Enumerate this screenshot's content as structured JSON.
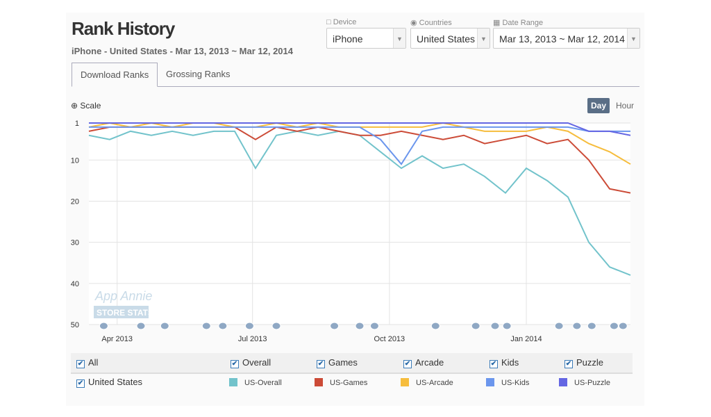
{
  "header": {
    "title": "Rank History",
    "subtitle": "iPhone - United States - Mar 13, 2013 ~ Mar 12, 2014"
  },
  "filters": {
    "device_label": "Device",
    "device": "iPhone",
    "countries_label": "Countries",
    "country": "United States",
    "date_label": "Date Range",
    "date_range": "Mar 13, 2013 ~ Mar 12, 2014"
  },
  "tabs": [
    "Download Ranks",
    "Grossing Ranks"
  ],
  "controls": {
    "scale": "Scale",
    "day": "Day",
    "hour": "Hour"
  },
  "watermark": {
    "line1": "App Annie",
    "line2": "STORE STATS"
  },
  "chart_data": {
    "type": "line",
    "x_unit": "days since Mar 13, 2013",
    "x": [
      0,
      14,
      28,
      42,
      56,
      70,
      84,
      98,
      112,
      126,
      140,
      154,
      168,
      182,
      196,
      210,
      224,
      238,
      252,
      266,
      280,
      294,
      308,
      322,
      336,
      350,
      364
    ],
    "y_ticks": [
      1,
      10,
      20,
      30,
      40,
      50
    ],
    "ylim": [
      1,
      50
    ],
    "y_reversed": true,
    "x_ticks": [
      {
        "label": "Apr 2013",
        "day": 19
      },
      {
        "label": "Jul 2013",
        "day": 110
      },
      {
        "label": "Oct 2013",
        "day": 202
      },
      {
        "label": "Jan 2014",
        "day": 294
      }
    ],
    "series": [
      {
        "name": "US-Overall",
        "color": "#72c3cb",
        "values": [
          4,
          5,
          3,
          4,
          3,
          4,
          3,
          3,
          12,
          4,
          3,
          4,
          3,
          4,
          8,
          12,
          9,
          12,
          11,
          14,
          18,
          12,
          15,
          19,
          30,
          36,
          38
        ]
      },
      {
        "name": "US-Games",
        "color": "#cc4b37",
        "values": [
          3,
          2,
          2,
          2,
          2,
          2,
          2,
          2,
          5,
          2,
          3,
          2,
          3,
          4,
          4,
          3,
          4,
          5,
          4,
          6,
          5,
          4,
          6,
          5,
          10,
          17,
          18
        ]
      },
      {
        "name": "US-Arcade",
        "color": "#f6bd3d",
        "values": [
          2,
          1,
          2,
          1,
          2,
          1,
          1,
          2,
          2,
          1,
          2,
          1,
          2,
          2,
          2,
          2,
          2,
          1,
          2,
          3,
          3,
          3,
          2,
          3,
          6,
          8,
          11
        ]
      },
      {
        "name": "US-Kids",
        "color": "#6b96ed",
        "values": [
          2,
          2,
          2,
          2,
          2,
          2,
          2,
          2,
          2,
          2,
          2,
          2,
          2,
          2,
          5,
          11,
          3,
          2,
          2,
          2,
          2,
          2,
          2,
          2,
          3,
          3,
          3
        ]
      },
      {
        "name": "US-Puzzle",
        "color": "#6466e3",
        "values": [
          1,
          1,
          1,
          1,
          1,
          1,
          1,
          1,
          1,
          1,
          1,
          1,
          1,
          1,
          1,
          1,
          1,
          1,
          1,
          1,
          1,
          1,
          1,
          1,
          3,
          3,
          4
        ]
      }
    ],
    "annotation_days": [
      10,
      35,
      51,
      79,
      90,
      108,
      126,
      165,
      182,
      192,
      233,
      260,
      273,
      281,
      316,
      328,
      338,
      353,
      359
    ]
  },
  "legend": {
    "all": "All",
    "country": "United States",
    "categories": [
      "Overall",
      "Games",
      "Arcade",
      "Kids",
      "Puzzle"
    ]
  }
}
